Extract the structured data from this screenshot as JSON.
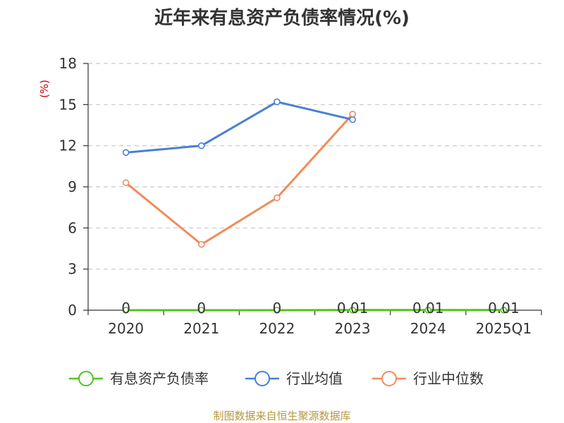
{
  "chart_data": {
    "type": "line",
    "title": "近年来有息资产负债率情况(%)",
    "ylabel": "(%)",
    "categories": [
      "2020",
      "2021",
      "2022",
      "2023",
      "2024",
      "2025Q1"
    ],
    "ylim": [
      0,
      18
    ],
    "yticks": [
      0,
      3,
      6,
      9,
      12,
      15,
      18
    ],
    "grid": true,
    "legend_position": "bottom",
    "series": [
      {
        "name": "有息资产负债率",
        "color": "#52c41a",
        "values": [
          0,
          0,
          0,
          0.01,
          0.01,
          0.01
        ],
        "data_labels": [
          "0",
          "0",
          "0",
          "0.01",
          "0.01",
          "0.01"
        ]
      },
      {
        "name": "行业均值",
        "color": "#4a7fd6",
        "values": [
          11.5,
          12.0,
          15.2,
          13.9,
          null,
          null
        ]
      },
      {
        "name": "行业中位数",
        "color": "#f08c5a",
        "values": [
          9.3,
          4.8,
          8.2,
          14.3,
          null,
          null
        ]
      }
    ]
  },
  "footer": {
    "source": "制图数据来自恒生聚源数据库"
  }
}
